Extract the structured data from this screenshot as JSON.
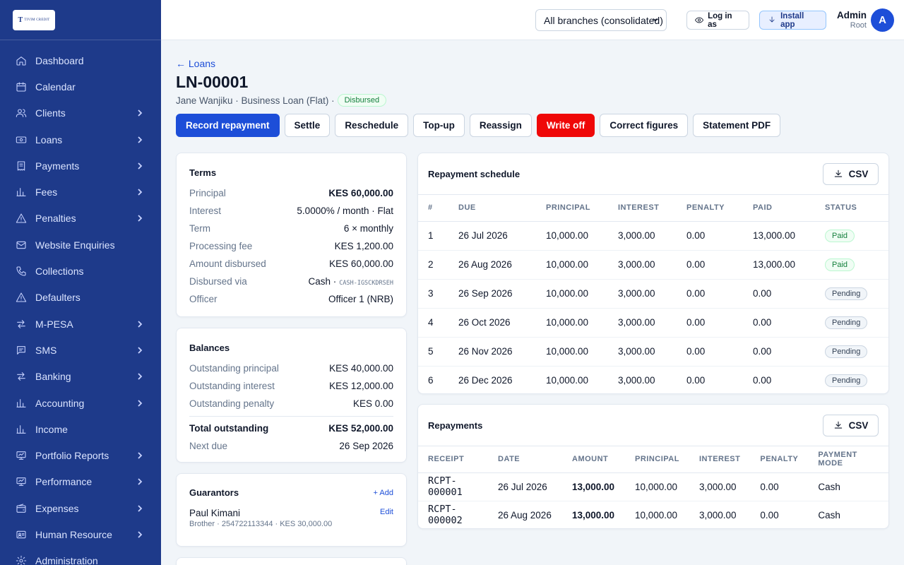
{
  "brand": {
    "logo_text": "TIVIM CREDIT",
    "logo_mark": "T"
  },
  "sidebar": {
    "items": [
      {
        "label": "Dashboard",
        "icon": "home-icon",
        "chevron": false
      },
      {
        "label": "Calendar",
        "icon": "calendar-icon",
        "chevron": false
      },
      {
        "label": "Clients",
        "icon": "users-icon",
        "chevron": true
      },
      {
        "label": "Loans",
        "icon": "banknote-icon",
        "chevron": true
      },
      {
        "label": "Payments",
        "icon": "receipt-icon",
        "chevron": true
      },
      {
        "label": "Fees",
        "icon": "bar-chart-icon",
        "chevron": true
      },
      {
        "label": "Penalties",
        "icon": "alert-triangle-icon",
        "chevron": true
      },
      {
        "label": "Website Enquiries",
        "icon": "mail-icon",
        "chevron": false
      },
      {
        "label": "Collections",
        "icon": "phone-icon",
        "chevron": false
      },
      {
        "label": "Defaulters",
        "icon": "alert-triangle-icon",
        "chevron": false
      },
      {
        "label": "M-PESA",
        "icon": "arrows-icon",
        "chevron": true
      },
      {
        "label": "SMS",
        "icon": "message-icon",
        "chevron": true
      },
      {
        "label": "Banking",
        "icon": "arrows-icon",
        "chevron": true
      },
      {
        "label": "Accounting",
        "icon": "bar-chart-icon",
        "chevron": true
      },
      {
        "label": "Income",
        "icon": "bar-chart-icon",
        "chevron": false
      },
      {
        "label": "Portfolio Reports",
        "icon": "presentation-icon",
        "chevron": true
      },
      {
        "label": "Performance",
        "icon": "presentation-icon",
        "chevron": true
      },
      {
        "label": "Expenses",
        "icon": "wallet-icon",
        "chevron": true
      },
      {
        "label": "Human Resource",
        "icon": "id-card-icon",
        "chevron": true
      },
      {
        "label": "Administration",
        "icon": "gear-icon",
        "chevron": false
      }
    ]
  },
  "header": {
    "branch": "All branches (consolidated)",
    "login_as": "Log in as",
    "install_app": "Install app",
    "user_name": "Admin",
    "user_role": "Root",
    "avatar_initial": "A"
  },
  "page": {
    "back": "← Loans",
    "title": "LN-00001",
    "subtitle": "Jane Wanjiku · Business Loan (Flat) ·",
    "status": "Disbursed"
  },
  "actions": [
    "Record repayment",
    "Settle",
    "Reschedule",
    "Top-up",
    "Reassign",
    "Write off",
    "Correct figures",
    "Statement PDF"
  ],
  "terms": {
    "title": "Terms",
    "rows": [
      {
        "k": "Principal",
        "v": "KES 60,000.00",
        "bold": true
      },
      {
        "k": "Interest",
        "v": "5.0000% / month · Flat"
      },
      {
        "k": "Term",
        "v": "6 × monthly"
      },
      {
        "k": "Processing fee",
        "v": "KES 1,200.00"
      },
      {
        "k": "Amount disbursed",
        "v": "KES 60,000.00"
      },
      {
        "k": "Disbursed via",
        "v": "Cash ·",
        "ref": "CASH-IGSCKDRSEH"
      },
      {
        "k": "Officer",
        "v": "Officer 1 (NRB)"
      }
    ]
  },
  "balances": {
    "title": "Balances",
    "rows": [
      {
        "k": "Outstanding principal",
        "v": "KES 40,000.00"
      },
      {
        "k": "Outstanding interest",
        "v": "KES 12,000.00"
      },
      {
        "k": "Outstanding penalty",
        "v": "KES 0.00"
      }
    ],
    "total_k": "Total outstanding",
    "total_v": "KES 52,000.00",
    "next_k": "Next due",
    "next_v": "26 Sep 2026"
  },
  "guarantors": {
    "title": "Guarantors",
    "add": "+ Add",
    "edit": "Edit",
    "name": "Paul Kimani",
    "meta": "Brother · 254722113344 · KES 30,000.00"
  },
  "schedule": {
    "title": "Repayment schedule",
    "csv": "CSV",
    "headers": [
      "#",
      "DUE",
      "PRINCIPAL",
      "INTEREST",
      "PENALTY",
      "PAID",
      "STATUS"
    ],
    "rows": [
      [
        "1",
        "26 Jul 2026",
        "10,000.00",
        "3,000.00",
        "0.00",
        "13,000.00",
        "Paid"
      ],
      [
        "2",
        "26 Aug 2026",
        "10,000.00",
        "3,000.00",
        "0.00",
        "13,000.00",
        "Paid"
      ],
      [
        "3",
        "26 Sep 2026",
        "10,000.00",
        "3,000.00",
        "0.00",
        "0.00",
        "Pending"
      ],
      [
        "4",
        "26 Oct 2026",
        "10,000.00",
        "3,000.00",
        "0.00",
        "0.00",
        "Pending"
      ],
      [
        "5",
        "26 Nov 2026",
        "10,000.00",
        "3,000.00",
        "0.00",
        "0.00",
        "Pending"
      ],
      [
        "6",
        "26 Dec 2026",
        "10,000.00",
        "3,000.00",
        "0.00",
        "0.00",
        "Pending"
      ]
    ]
  },
  "repayments": {
    "title": "Repayments",
    "csv": "CSV",
    "headers": [
      "RECEIPT",
      "DATE",
      "AMOUNT",
      "PRINCIPAL",
      "INTEREST",
      "PENALTY",
      "PAYMENT MODE"
    ],
    "rows": [
      [
        "RCPT-000001",
        "26 Jul 2026",
        "13,000.00",
        "10,000.00",
        "3,000.00",
        "0.00",
        "Cash"
      ],
      [
        "RCPT-000002",
        "26 Aug 2026",
        "13,000.00",
        "10,000.00",
        "3,000.00",
        "0.00",
        "Cash"
      ]
    ]
  },
  "colors": {
    "sidebar": "#1e3a8a",
    "primary": "#1d4ed8",
    "danger": "#ef0808",
    "paid": "#15803d"
  }
}
